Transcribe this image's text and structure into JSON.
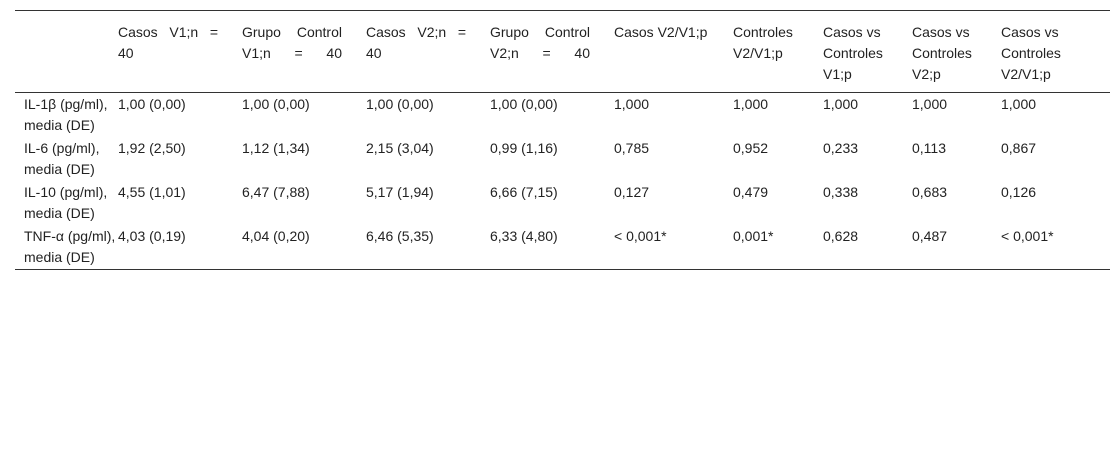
{
  "table": {
    "headers": [
      "",
      "Casos V1;n = 40",
      "Grupo Control V1;n = 40",
      "Casos V2;n = 40",
      "Grupo Control V2;n = 40",
      "Casos V2/V1;p",
      "Controles V2/V1;p",
      "Casos vs Controles V1;p",
      "Casos vs Controles V2;p",
      "Casos vs Controles V2/V1;p"
    ],
    "rows": [
      [
        "IL-1β (pg/ml), media (DE)",
        "1,00 (0,00)",
        "1,00 (0,00)",
        "1,00 (0,00)",
        "1,00 (0,00)",
        "1,000",
        "1,000",
        "1,000",
        "1,000",
        "1,000"
      ],
      [
        "IL-6 (pg/ml), media (DE)",
        "1,92 (2,50)",
        "1,12 (1,34)",
        "2,15 (3,04)",
        "0,99 (1,16)",
        "0,785",
        "0,952",
        "0,233",
        "0,113",
        "0,867"
      ],
      [
        "IL-10 (pg/ml), media (DE)",
        "4,55 (1,01)",
        "6,47 (7,88)",
        "5,17 (1,94)",
        "6,66 (7,15)",
        "0,127",
        "0,479",
        "0,338",
        "0,683",
        "0,126"
      ],
      [
        "TNF-α (pg/ml), media (DE)",
        "4,03 (0,19)",
        "4,04 (0,20)",
        "6,46 (5,35)",
        "6,33 (4,80)",
        "< 0,001*",
        "0,001*",
        "0,628",
        "0,487",
        "< 0,001*"
      ]
    ]
  }
}
